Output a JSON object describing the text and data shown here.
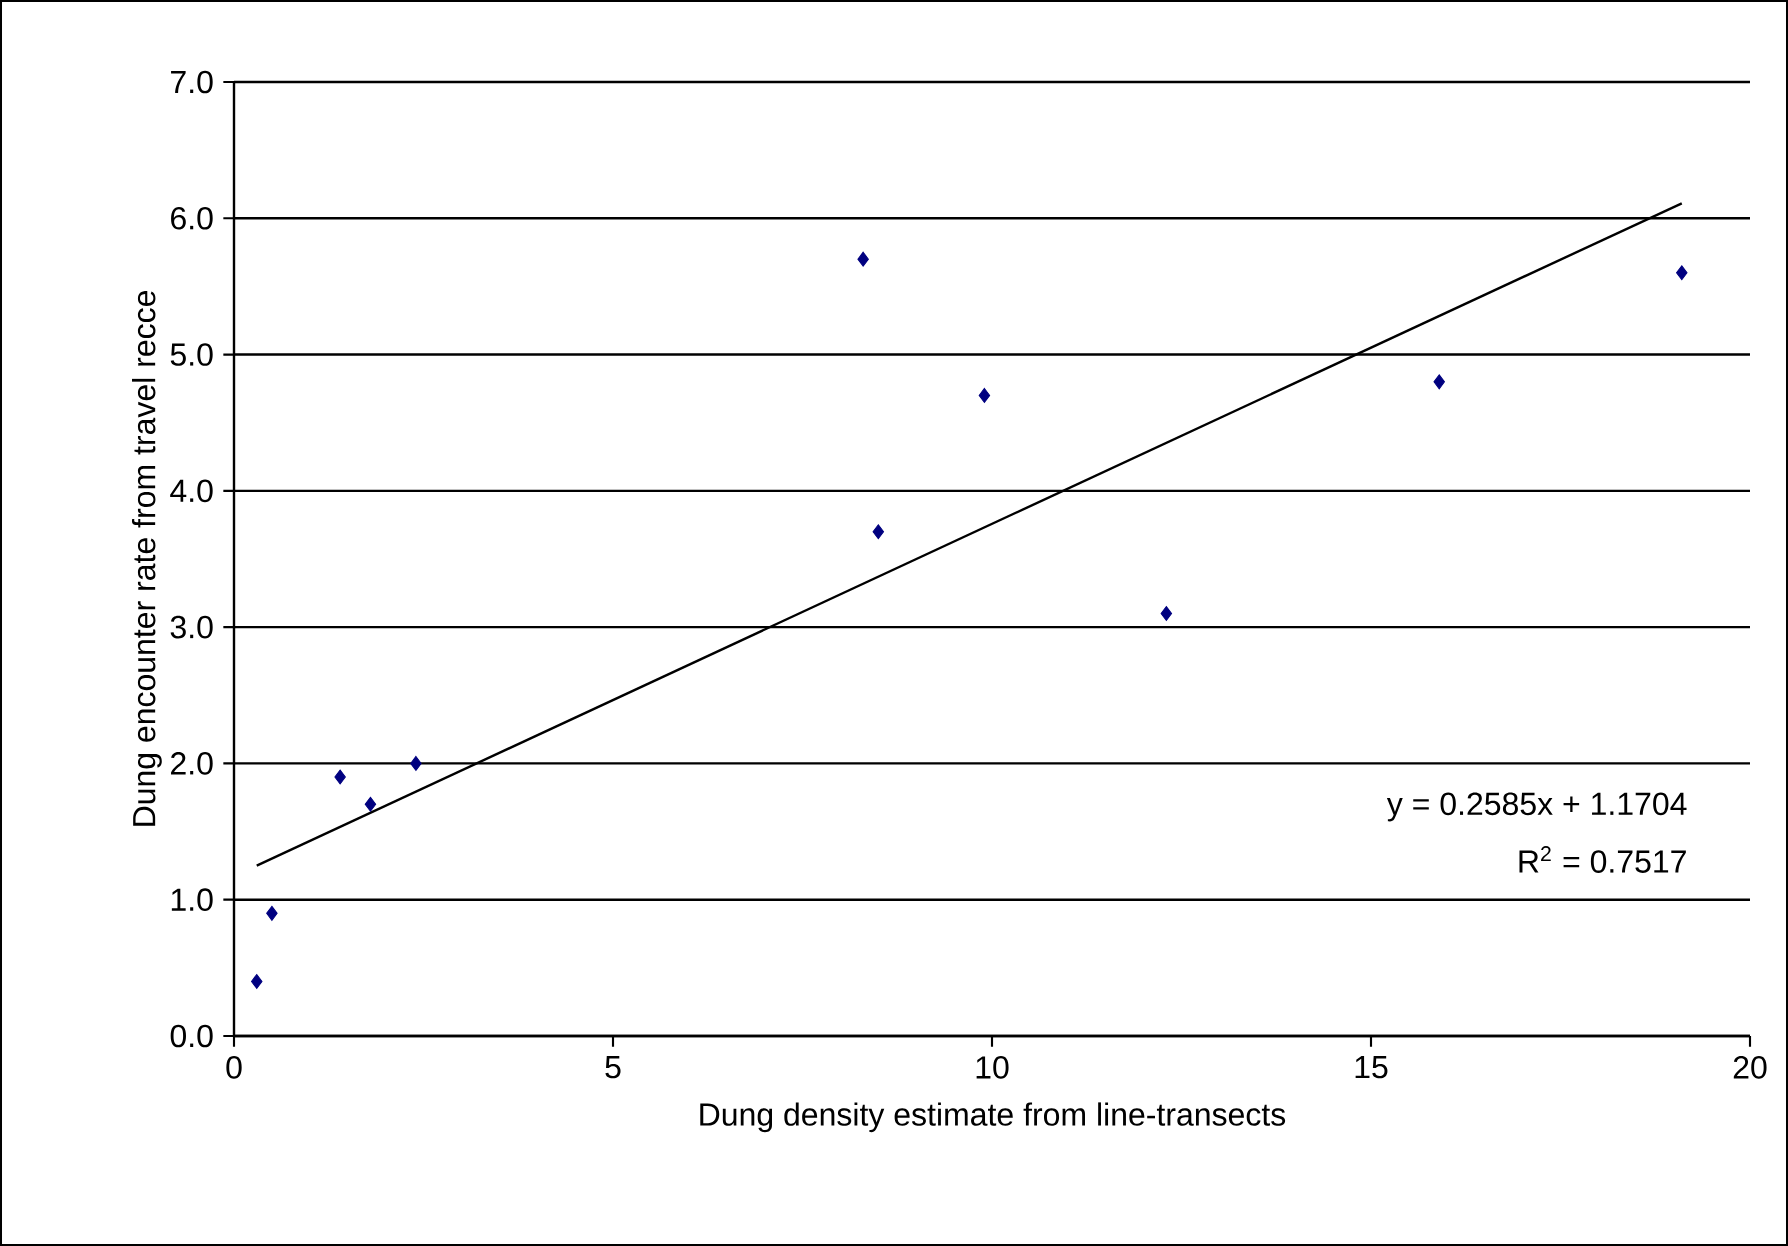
{
  "chart_data": {
    "type": "scatter",
    "xlabel": "Dung density estimate from line-transects",
    "ylabel": "Dung encounter rate from travel recce",
    "xlim": [
      0,
      20
    ],
    "xticks": [
      0,
      5,
      10,
      15,
      20
    ],
    "ylim": [
      0,
      7
    ],
    "yticks": [
      {
        "value": 0,
        "label": "0.0"
      },
      {
        "value": 1,
        "label": "1.0"
      },
      {
        "value": 2,
        "label": "2.0"
      },
      {
        "value": 3,
        "label": "3.0"
      },
      {
        "value": 4,
        "label": "4.0"
      },
      {
        "value": 5,
        "label": "5.0"
      },
      {
        "value": 6,
        "label": "6.0"
      },
      {
        "value": 7,
        "label": "7.0"
      }
    ],
    "grid": "y",
    "marker": "diamond",
    "series": [
      {
        "color": "#000080",
        "x": [
          0.3,
          0.5,
          1.4,
          1.8,
          2.4,
          8.3,
          8.5,
          9.9,
          12.3,
          15.9,
          19.1
        ],
        "values": [
          0.4,
          0.9,
          1.9,
          1.7,
          2.0,
          5.7,
          3.7,
          4.7,
          3.1,
          4.8,
          5.6
        ]
      },
      {
        "type": "line",
        "marker": "none",
        "color": "#000000",
        "x": [
          0.3,
          19.1
        ],
        "values": [
          1.25,
          6.11
        ]
      }
    ],
    "annotations": [
      "y = 0.2585x + 1.1704",
      "R$^{2}$ = 0.7517"
    ]
  }
}
